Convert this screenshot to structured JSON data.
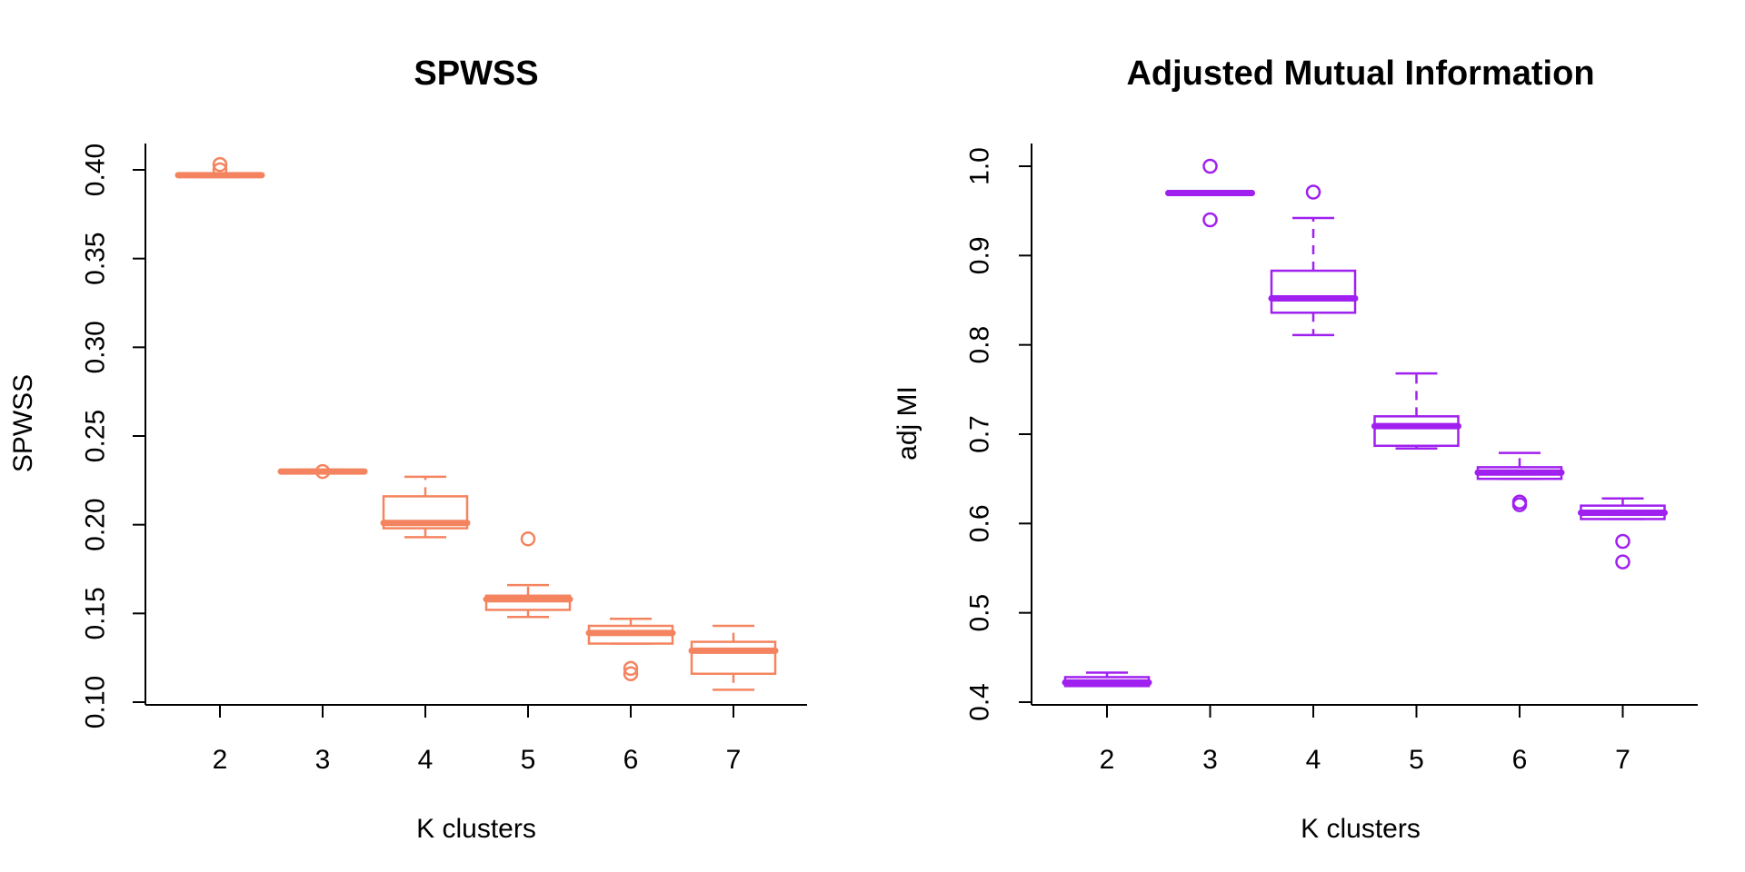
{
  "colors": {
    "left": "#f4845f",
    "right": "#a020f0",
    "axis": "#000000"
  },
  "chart_data": [
    {
      "type": "box",
      "title": "SPWSS",
      "xlabel": "K clusters",
      "ylabel": "SPWSS",
      "categories": [
        "2",
        "3",
        "4",
        "5",
        "6",
        "7"
      ],
      "yticks": [
        "0.10",
        "0.15",
        "0.20",
        "0.25",
        "0.30",
        "0.35",
        "0.40"
      ],
      "ylim": [
        0.1,
        0.4
      ],
      "color": "#f4845f",
      "boxes": [
        {
          "min": 0.396,
          "q1": 0.3965,
          "median": 0.397,
          "q3": 0.3975,
          "max": 0.398,
          "outliers": [
            0.4,
            0.403
          ]
        },
        {
          "min": 0.229,
          "q1": 0.229,
          "median": 0.23,
          "q3": 0.2305,
          "max": 0.231,
          "outliers": [
            0.23
          ]
        },
        {
          "min": 0.193,
          "q1": 0.198,
          "median": 0.201,
          "q3": 0.216,
          "max": 0.227,
          "outliers": []
        },
        {
          "min": 0.148,
          "q1": 0.152,
          "median": 0.158,
          "q3": 0.16,
          "max": 0.166,
          "outliers": [
            0.192
          ]
        },
        {
          "min": 0.133,
          "q1": 0.133,
          "median": 0.139,
          "q3": 0.143,
          "max": 0.147,
          "outliers": [
            0.116,
            0.119
          ]
        },
        {
          "min": 0.107,
          "q1": 0.116,
          "median": 0.129,
          "q3": 0.134,
          "max": 0.143,
          "outliers": []
        }
      ]
    },
    {
      "type": "box",
      "title": "Adjusted Mutual Information",
      "xlabel": "K clusters",
      "ylabel": "adj MI",
      "categories": [
        "2",
        "3",
        "4",
        "5",
        "6",
        "7"
      ],
      "yticks": [
        "0.4",
        "0.5",
        "0.6",
        "0.7",
        "0.8",
        "0.9",
        "1.0"
      ],
      "ylim": [
        0.4,
        1.0
      ],
      "color": "#a020f0",
      "boxes": [
        {
          "min": 0.418,
          "q1": 0.418,
          "median": 0.422,
          "q3": 0.428,
          "max": 0.433,
          "outliers": []
        },
        {
          "min": 0.968,
          "q1": 0.968,
          "median": 0.97,
          "q3": 0.972,
          "max": 0.972,
          "outliers": [
            1.0,
            0.94
          ]
        },
        {
          "min": 0.811,
          "q1": 0.836,
          "median": 0.852,
          "q3": 0.883,
          "max": 0.942,
          "outliers": [
            0.971
          ]
        },
        {
          "min": 0.684,
          "q1": 0.687,
          "median": 0.709,
          "q3": 0.72,
          "max": 0.768,
          "outliers": []
        },
        {
          "min": 0.65,
          "q1": 0.65,
          "median": 0.657,
          "q3": 0.663,
          "max": 0.679,
          "outliers": [
            0.621,
            0.624
          ]
        },
        {
          "min": 0.605,
          "q1": 0.605,
          "median": 0.612,
          "q3": 0.62,
          "max": 0.628,
          "outliers": [
            0.58,
            0.557
          ]
        }
      ]
    }
  ]
}
